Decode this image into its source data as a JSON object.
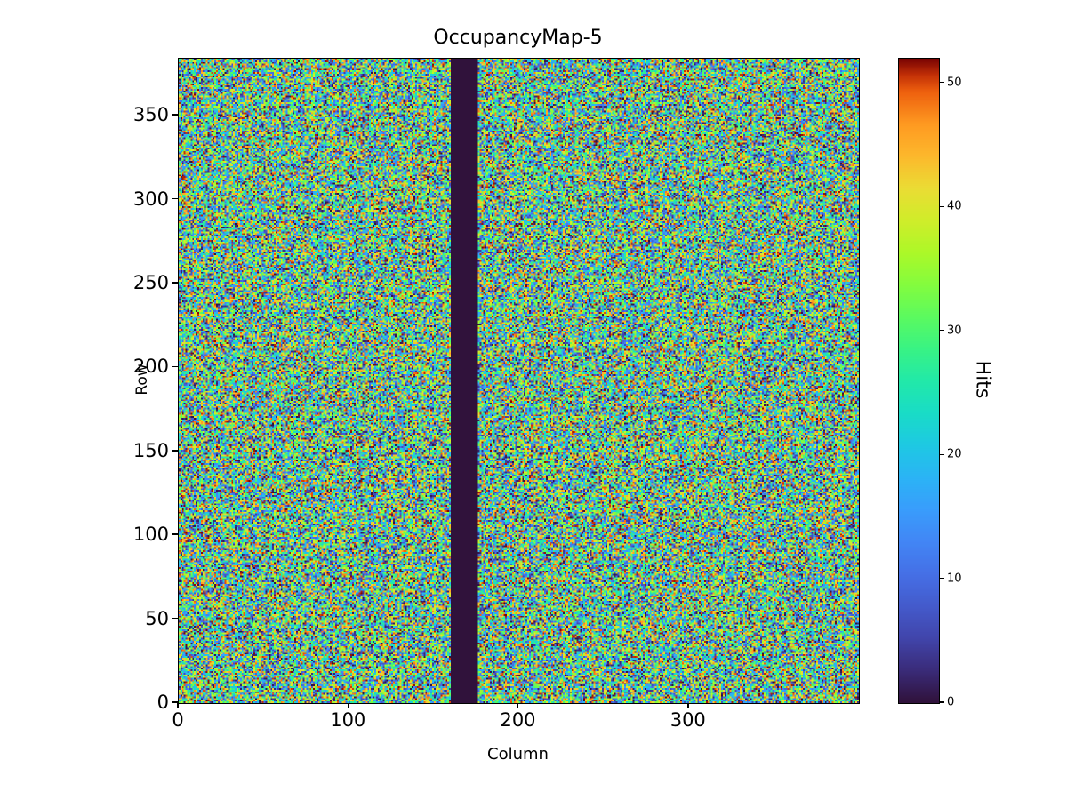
{
  "chart_data": {
    "type": "heatmap",
    "title": "OccupancyMap-5",
    "xlabel": "Column",
    "ylabel": "Row",
    "colorbar_label": "Hits",
    "colormap": "turbo",
    "n_cols": 400,
    "n_rows": 384,
    "x_range": [
      0,
      400
    ],
    "y_range": [
      0,
      384
    ],
    "value_range": [
      0,
      52
    ],
    "x_ticks": [
      0,
      100,
      200,
      300
    ],
    "y_ticks": [
      0,
      50,
      100,
      150,
      200,
      250,
      300,
      350
    ],
    "colorbar_ticks": [
      0,
      10,
      20,
      30,
      40,
      50
    ],
    "dead_columns": {
      "start": 160,
      "end": 175,
      "value": 0
    },
    "values_description": "per-pixel hit counts, approximately uniform random noise between 0 and 52 hits; columns 160-175 are dead (0 hits)",
    "seed": 5,
    "legend_position": "right-colorbar",
    "grid": false
  }
}
